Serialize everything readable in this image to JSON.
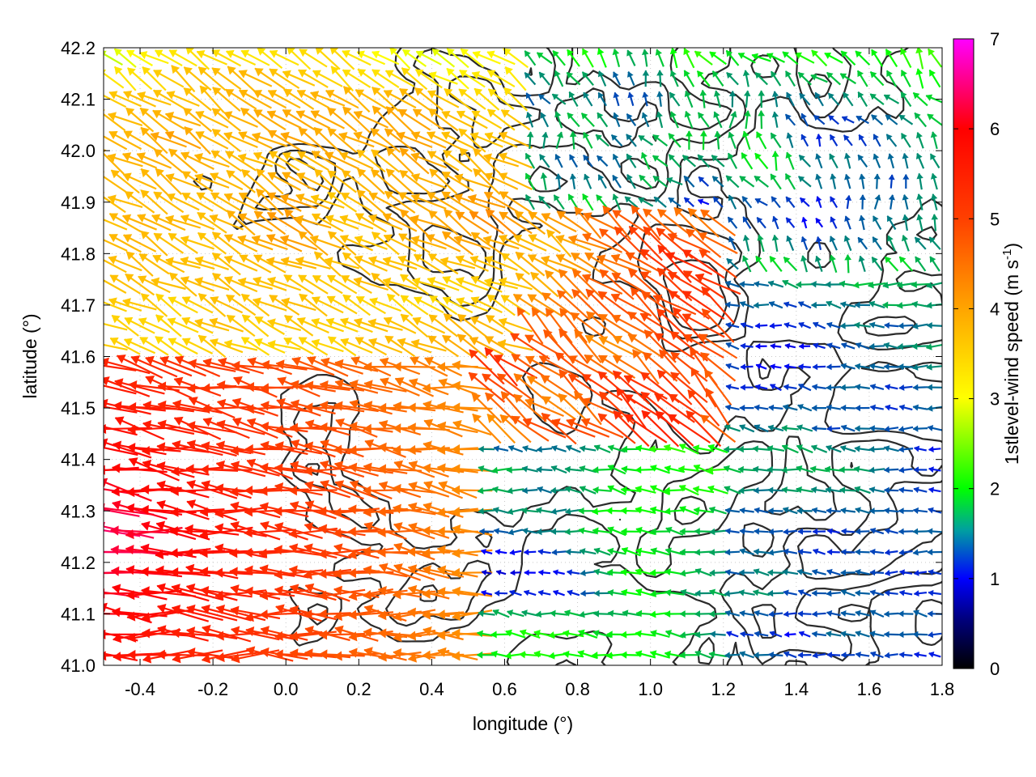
{
  "chart_data": {
    "type": "vector-field",
    "title": "",
    "xlabel": "longitude (°)",
    "ylabel": "latitude (°)",
    "xlim": [
      -0.5,
      1.8
    ],
    "ylim": [
      41.0,
      42.2
    ],
    "x_ticks": [
      -0.4,
      -0.2,
      0.0,
      0.2,
      0.4,
      0.6,
      0.8,
      1.0,
      1.2,
      1.4,
      1.6,
      1.8
    ],
    "x_tick_labels": [
      "-0.4",
      "-0.2",
      "0.0",
      "0.2",
      "0.4",
      "0.6",
      "0.8",
      "1.0",
      "1.2",
      "1.4",
      "1.6",
      "1.8"
    ],
    "y_ticks": [
      41.0,
      41.1,
      41.2,
      41.3,
      41.4,
      41.5,
      41.6,
      41.7,
      41.8,
      41.9,
      42.0,
      42.1,
      42.2
    ],
    "y_tick_labels": [
      "41.0",
      "41.1",
      "41.2",
      "41.3",
      "41.4",
      "41.5",
      "41.6",
      "41.7",
      "41.8",
      "41.9",
      "42.0",
      "42.1",
      "42.2"
    ],
    "grid": true,
    "colorbar": {
      "label": "1stlevel-wind speed (m s",
      "label_superscript": "-1",
      "label_suffix": ")",
      "range": [
        0,
        7
      ],
      "ticks": [
        0,
        1,
        2,
        3,
        4,
        5,
        6,
        7
      ],
      "tick_labels": [
        "0",
        "1",
        "2",
        "3",
        "4",
        "5",
        "6",
        "7"
      ],
      "colors": [
        "#000000",
        "#0000ff",
        "#00ff00",
        "#ffff00",
        "#ffa500",
        "#ff4000",
        "#ff0000",
        "#ff00ff"
      ]
    },
    "contour_color": "#2b2b2b",
    "vector_grid": {
      "nx": 58,
      "ny": 30
    },
    "wind_regimes": [
      {
        "region": "west (lon -0.5 to 0.5, lat 41.0 to 41.6)",
        "direction": "from east-southeast",
        "speed": [
          4,
          6.5
        ]
      },
      {
        "region": "north-west (lon -0.5 to 0.6, lat 41.6 to 42.2)",
        "direction": "from south-east",
        "speed": [
          2.5,
          4.5
        ]
      },
      {
        "region": "centre (lon 0.5 to 1.2, lat 41.4 to 41.8)",
        "direction": "from south-east",
        "speed": [
          3,
          6.5
        ]
      },
      {
        "region": "north-east (lon 1.0 to 1.8, lat 41.7 to 42.2)",
        "direction": "variable",
        "speed": [
          0.5,
          3
        ]
      },
      {
        "region": "south-east (lon 0.8 to 1.8, lat 41.0 to 41.4)",
        "direction": "from east",
        "speed": [
          0.3,
          2
        ]
      }
    ]
  }
}
